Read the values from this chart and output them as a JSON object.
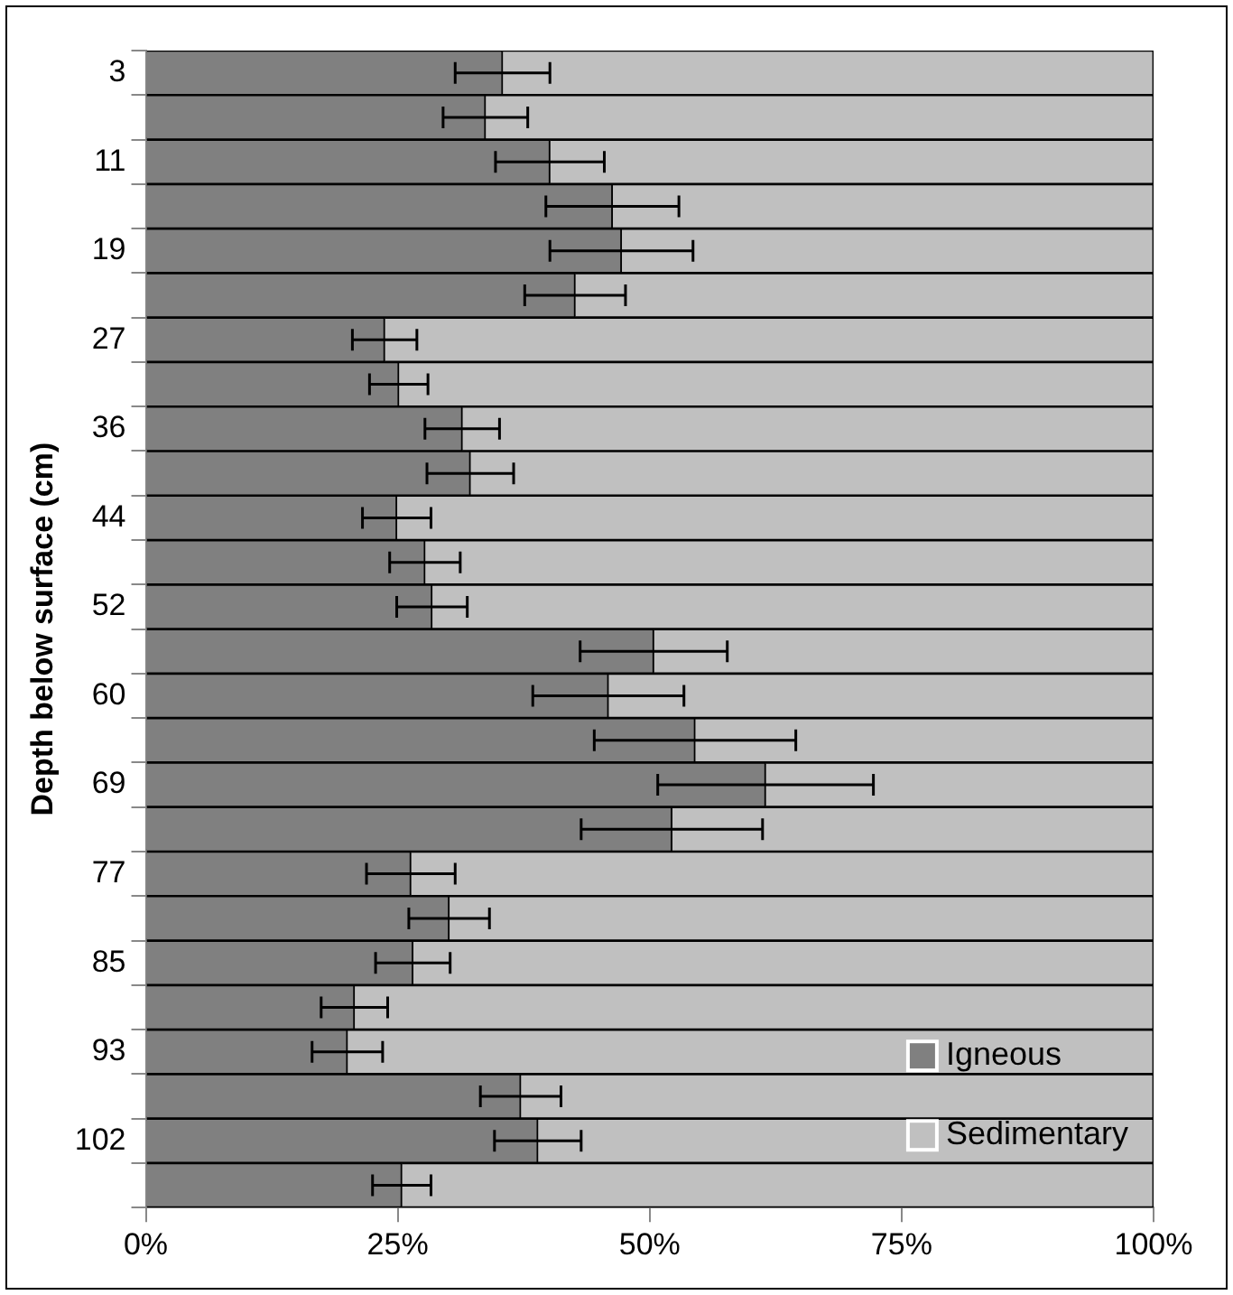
{
  "chart_data": {
    "type": "bar",
    "orientation": "horizontal",
    "stacked": true,
    "ylabel": "Depth below surface (cm)",
    "categories": [
      "3",
      null,
      "11",
      null,
      "19",
      null,
      "27",
      null,
      "36",
      null,
      "44",
      null,
      "52",
      null,
      "60",
      null,
      "69",
      null,
      "77",
      null,
      "85",
      null,
      "93",
      null,
      "102",
      null
    ],
    "series": [
      {
        "name": "Igneous",
        "color": "#808080",
        "values": [
          35.4,
          33.7,
          40.1,
          46.3,
          47.2,
          42.6,
          23.7,
          25.1,
          31.4,
          32.2,
          24.9,
          27.7,
          28.4,
          50.4,
          45.9,
          54.5,
          61.5,
          52.2,
          26.3,
          30.1,
          26.5,
          20.7,
          20,
          37.2,
          38.9,
          25.4
        ],
        "errors": [
          4.7,
          4.2,
          5.4,
          6.6,
          7.1,
          5,
          3.2,
          2.9,
          3.7,
          4.3,
          3.4,
          3.5,
          3.5,
          7.3,
          7.5,
          10,
          10.7,
          9,
          4.4,
          4,
          3.7,
          3.3,
          3.5,
          4,
          4.3,
          2.9
        ]
      },
      {
        "name": "Sedimentary",
        "color": "#c0c0c0",
        "values": [
          64.6,
          66.3,
          59.9,
          53.7,
          52.8,
          57.4,
          76.3,
          74.9,
          68.6,
          67.8,
          75.1,
          72.3,
          71.6,
          49.6,
          54.1,
          45.5,
          38.5,
          47.8,
          73.7,
          69.9,
          73.5,
          79.3,
          80,
          62.8,
          61.1,
          74.6
        ]
      }
    ],
    "xlim": [
      0,
      100
    ],
    "xticks": [
      {
        "value": 0,
        "label": "0%"
      },
      {
        "value": 25,
        "label": "25%"
      },
      {
        "value": 50,
        "label": "50%"
      },
      {
        "value": 75,
        "label": "75%"
      },
      {
        "value": 100,
        "label": "100%"
      }
    ],
    "grid": false,
    "legend": "bottom right"
  }
}
